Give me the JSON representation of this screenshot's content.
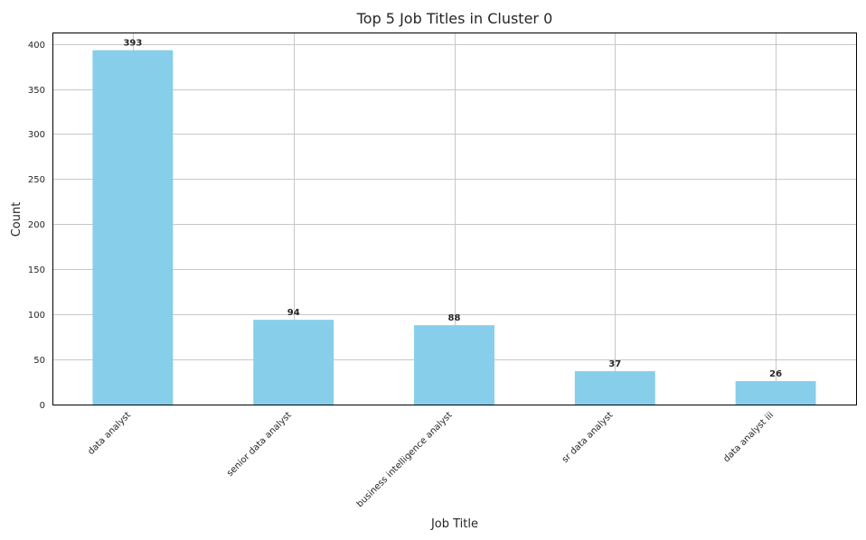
{
  "chart_data": {
    "type": "bar",
    "title": "Top 5 Job Titles in Cluster 0",
    "xlabel": "Job Title",
    "ylabel": "Count",
    "categories": [
      "data analyst",
      "senior data analyst",
      "business intelligence analyst",
      "sr data analyst",
      "data analyst iii"
    ],
    "values": [
      393,
      94,
      88,
      37,
      26
    ],
    "data_labels": [
      "393",
      "94",
      "88",
      "37",
      "26"
    ],
    "yticks": [
      0,
      50,
      100,
      150,
      200,
      250,
      300,
      350,
      400
    ],
    "ytick_labels": [
      "0",
      "50",
      "100",
      "150",
      "200",
      "250",
      "300",
      "350",
      "400"
    ],
    "ylim": [
      0,
      412.65
    ],
    "grid": true,
    "bar_color": "#87ceeb",
    "grid_color": "#c8c8c8"
  }
}
